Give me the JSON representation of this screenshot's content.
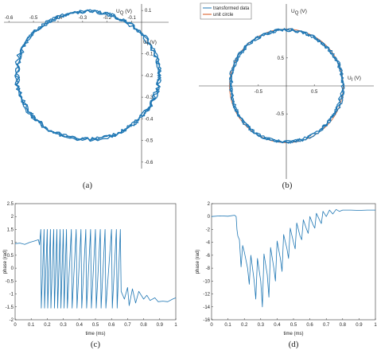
{
  "chart_data": [
    {
      "panel": "(a)",
      "type": "scatter",
      "xlabel": "U",
      "xlabel_sub": "I",
      "xunit": "(V)",
      "ylabel": "U",
      "ylabel_sub": "Q",
      "yunit": "(V)",
      "xlim": [
        -0.62,
        0.05
      ],
      "ylim": [
        -0.63,
        0.13
      ],
      "x_ticks": [
        -0.6,
        -0.5,
        -0.4,
        -0.3,
        -0.2,
        -0.1
      ],
      "x_tick_labels": [
        "-0.6",
        "-0.5",
        "-0.4",
        "-0.3",
        "-0.2",
        "-0.1"
      ],
      "y_ticks": [
        0.1,
        -0.1,
        -0.2,
        -0.3,
        -0.4,
        -0.5,
        -0.6
      ],
      "y_tick_labels": [
        "0.1",
        "-0.1",
        "-0.2",
        "-0.3",
        "-0.4",
        "-0.5",
        "-0.6"
      ],
      "trace": {
        "center": [
          -0.28,
          -0.2
        ],
        "radius": [
          0.29,
          0.295
        ],
        "noise": 0.009,
        "color": "#1f77b4"
      }
    },
    {
      "panel": "(b)",
      "type": "scatter",
      "xlabel": "U",
      "xlabel_sub": "I",
      "xunit": "(V)",
      "ylabel": "U",
      "ylabel_sub": "Q",
      "yunit": "(V)",
      "xlim": [
        -1.45,
        1.45
      ],
      "ylim": [
        -1.45,
        1.45
      ],
      "x_ticks": [
        -0.5,
        0.5
      ],
      "x_tick_labels": [
        "-0.5",
        "0.5"
      ],
      "y_ticks": [
        0.5,
        -0.5
      ],
      "y_tick_labels": [
        "0.5",
        "-0.5"
      ],
      "legend": {
        "placement": "top-left",
        "entries": [
          {
            "name": "transformed data",
            "color": "#1f77b4"
          },
          {
            "name": "unit circle",
            "color": "#d95319"
          }
        ]
      },
      "trace": {
        "center": [
          0.0,
          0.0
        ],
        "radius": [
          1.0,
          1.0
        ],
        "noise": 0.03,
        "color": "#1f77b4"
      }
    },
    {
      "panel": "(c)",
      "type": "line",
      "xlabel": "time (ms)",
      "ylabel": "phase (rad)",
      "xlim": [
        0,
        1
      ],
      "ylim": [
        -2,
        2.5
      ],
      "x_ticks": [
        0,
        0.1,
        0.2,
        0.3,
        0.4,
        0.5,
        0.6,
        0.7,
        0.8,
        0.9,
        1
      ],
      "x_tick_labels": [
        "0",
        "0.1",
        "0.2",
        "0.3",
        "0.4",
        "0.5",
        "0.6",
        "0.7",
        "0.8",
        "0.9",
        "1"
      ],
      "y_ticks": [
        2.5,
        2,
        1.5,
        1,
        0.5,
        0,
        -0.5,
        -1,
        -1.5,
        -2
      ],
      "y_tick_labels": [
        "2.5",
        "2",
        "1.5",
        "1",
        "0.5",
        "0",
        "-0.5",
        "-1",
        "-1.5",
        "-2"
      ],
      "color": "#1f77b4",
      "points": [
        [
          0,
          0.95
        ],
        [
          0.03,
          0.97
        ],
        [
          0.06,
          0.92
        ],
        [
          0.09,
          1.0
        ],
        [
          0.12,
          1.05
        ],
        [
          0.145,
          1.1
        ],
        [
          0.152,
          0.9
        ],
        [
          0.16,
          1.5
        ],
        [
          0.163,
          -1.55
        ],
        [
          0.18,
          1.5
        ],
        [
          0.183,
          -1.55
        ],
        [
          0.2,
          1.5
        ],
        [
          0.203,
          -1.55
        ],
        [
          0.22,
          1.5
        ],
        [
          0.223,
          -1.55
        ],
        [
          0.24,
          1.5
        ],
        [
          0.245,
          -1.55
        ],
        [
          0.26,
          1.5
        ],
        [
          0.265,
          -1.55
        ],
        [
          0.28,
          1.5
        ],
        [
          0.285,
          -1.55
        ],
        [
          0.3,
          1.5
        ],
        [
          0.305,
          -1.55
        ],
        [
          0.32,
          1.5
        ],
        [
          0.325,
          -1.55
        ],
        [
          0.35,
          1.5
        ],
        [
          0.355,
          -1.55
        ],
        [
          0.38,
          1.5
        ],
        [
          0.385,
          -1.55
        ],
        [
          0.41,
          1.5
        ],
        [
          0.415,
          -1.55
        ],
        [
          0.44,
          1.5
        ],
        [
          0.445,
          -1.55
        ],
        [
          0.47,
          1.5
        ],
        [
          0.475,
          -1.55
        ],
        [
          0.5,
          1.5
        ],
        [
          0.505,
          -1.55
        ],
        [
          0.53,
          1.5
        ],
        [
          0.535,
          -1.55
        ],
        [
          0.56,
          1.5
        ],
        [
          0.565,
          -1.55
        ],
        [
          0.6,
          1.5
        ],
        [
          0.605,
          -1.55
        ],
        [
          0.63,
          1.5
        ],
        [
          0.635,
          -1.55
        ],
        [
          0.655,
          1.5
        ],
        [
          0.66,
          -0.9
        ],
        [
          0.68,
          -1.2
        ],
        [
          0.7,
          -0.75
        ],
        [
          0.71,
          -1.45
        ],
        [
          0.73,
          -0.8
        ],
        [
          0.75,
          -1.35
        ],
        [
          0.77,
          -0.9
        ],
        [
          0.8,
          -1.2
        ],
        [
          0.82,
          -1.05
        ],
        [
          0.84,
          -1.25
        ],
        [
          0.87,
          -1.15
        ],
        [
          0.89,
          -1.3
        ],
        [
          0.92,
          -1.28
        ],
        [
          0.95,
          -1.3
        ],
        [
          0.98,
          -1.2
        ],
        [
          1.0,
          -1.15
        ]
      ]
    },
    {
      "panel": "(d)",
      "type": "line",
      "xlabel": "time (ms)",
      "ylabel": "phase (rad)",
      "xlim": [
        0,
        1
      ],
      "ylim": [
        -16,
        2
      ],
      "x_ticks": [
        0,
        0.1,
        0.2,
        0.3,
        0.4,
        0.5,
        0.6,
        0.7,
        0.8,
        0.9,
        1
      ],
      "x_tick_labels": [
        "0",
        "0.1",
        "0.2",
        "0.3",
        "0.4",
        "0.5",
        "0.6",
        "0.7",
        "0.8",
        "0.9",
        "1"
      ],
      "y_ticks": [
        2,
        0,
        -2,
        -4,
        -6,
        -8,
        -10,
        -12,
        -14,
        -16
      ],
      "y_tick_labels": [
        "2",
        "0",
        "-2",
        "-4",
        "-6",
        "-8",
        "-10",
        "-12",
        "-14",
        "-16"
      ],
      "color": "#1f77b4",
      "points": [
        [
          0,
          0
        ],
        [
          0.05,
          0.1
        ],
        [
          0.1,
          0.05
        ],
        [
          0.14,
          0.2
        ],
        [
          0.15,
          0.0
        ],
        [
          0.155,
          -2
        ],
        [
          0.16,
          -3
        ],
        [
          0.17,
          -3.6
        ],
        [
          0.18,
          -7.8
        ],
        [
          0.19,
          -4.5
        ],
        [
          0.2,
          -5.5
        ],
        [
          0.22,
          -8
        ],
        [
          0.23,
          -10.5
        ],
        [
          0.24,
          -6
        ],
        [
          0.26,
          -10
        ],
        [
          0.27,
          -12.8
        ],
        [
          0.28,
          -6.5
        ],
        [
          0.3,
          -10
        ],
        [
          0.31,
          -14
        ],
        [
          0.32,
          -5.8
        ],
        [
          0.34,
          -9
        ],
        [
          0.35,
          -12.5
        ],
        [
          0.36,
          -4.8
        ],
        [
          0.38,
          -8
        ],
        [
          0.39,
          -10
        ],
        [
          0.4,
          -3.8
        ],
        [
          0.42,
          -6.5
        ],
        [
          0.43,
          -8.5
        ],
        [
          0.44,
          -2.8
        ],
        [
          0.46,
          -5
        ],
        [
          0.47,
          -6.5
        ],
        [
          0.48,
          -1.8
        ],
        [
          0.5,
          -4
        ],
        [
          0.51,
          -5
        ],
        [
          0.52,
          -1
        ],
        [
          0.54,
          -3
        ],
        [
          0.55,
          -3.6
        ],
        [
          0.56,
          -0.5
        ],
        [
          0.58,
          -2
        ],
        [
          0.59,
          -2.6
        ],
        [
          0.6,
          0.0
        ],
        [
          0.62,
          -1.3
        ],
        [
          0.63,
          -1.8
        ],
        [
          0.64,
          0.5
        ],
        [
          0.66,
          -0.6
        ],
        [
          0.67,
          -1.1
        ],
        [
          0.68,
          0.8
        ],
        [
          0.7,
          0.0
        ],
        [
          0.72,
          1.0
        ],
        [
          0.74,
          0.4
        ],
        [
          0.76,
          1.1
        ],
        [
          0.78,
          0.8
        ],
        [
          0.8,
          1.0
        ],
        [
          0.85,
          1.0
        ],
        [
          0.9,
          0.95
        ],
        [
          0.95,
          1.0
        ],
        [
          1.0,
          1.0
        ]
      ]
    }
  ]
}
